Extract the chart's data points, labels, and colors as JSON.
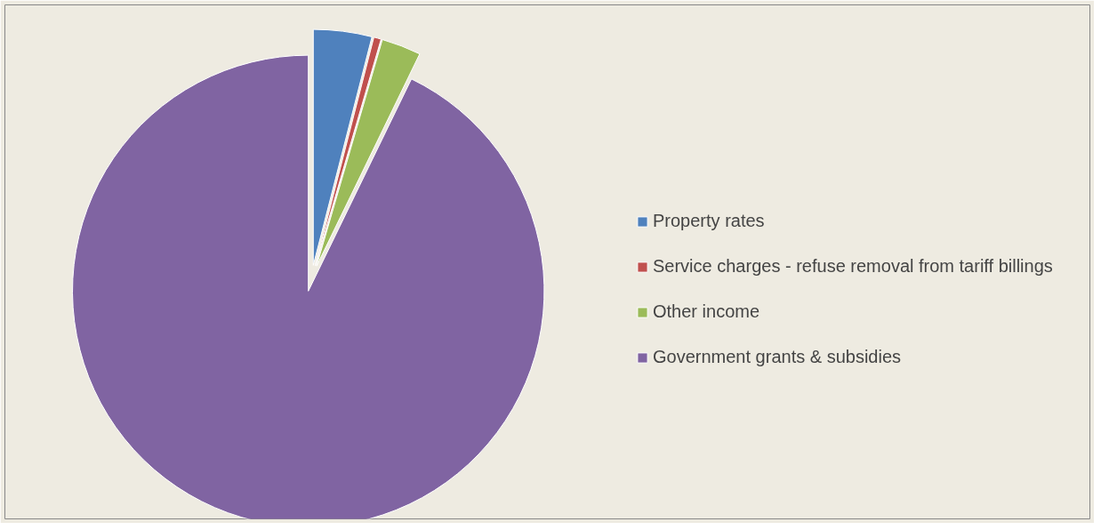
{
  "chart_data": {
    "type": "pie",
    "categories": [
      "Property rates",
      "Service charges - refuse removal from tariff billings",
      "Other income",
      "Government grants & subsidies"
    ],
    "values": [
      4,
      0.5,
      2.7,
      92.8
    ],
    "colors": [
      "#4f81bd",
      "#c0504d",
      "#9bbb59",
      "#8064a2"
    ],
    "legend": "right"
  }
}
